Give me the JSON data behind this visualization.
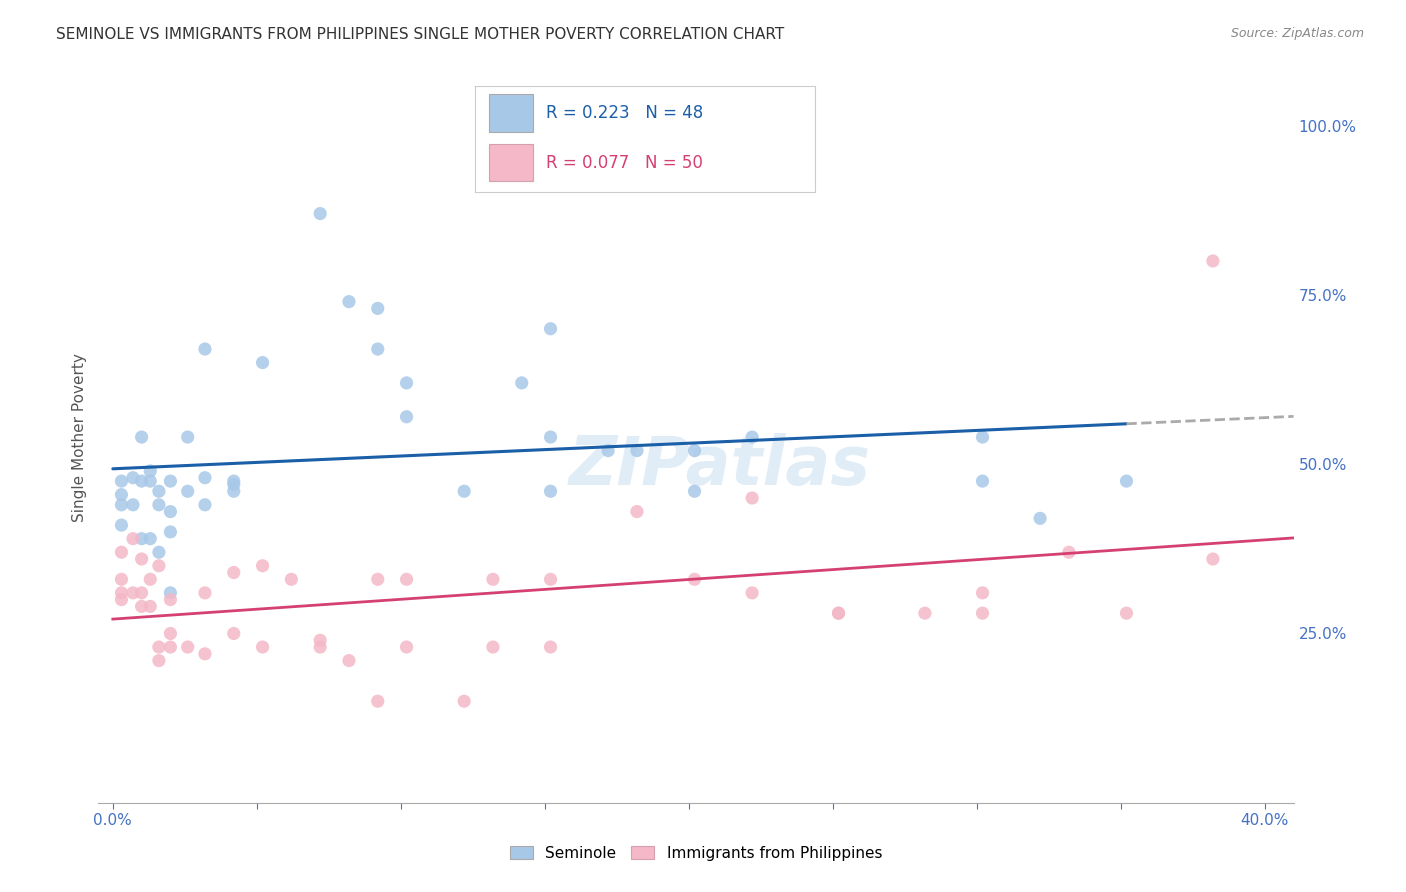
{
  "title": "SEMINOLE VS IMMIGRANTS FROM PHILIPPINES SINGLE MOTHER POVERTY CORRELATION CHART",
  "source": "Source: ZipAtlas.com",
  "ylabel": "Single Mother Poverty",
  "ylabel_right_ticks": [
    "100.0%",
    "75.0%",
    "50.0%",
    "25.0%"
  ],
  "ylabel_right_vals": [
    1.0,
    0.75,
    0.5,
    0.25
  ],
  "xlim": [
    -0.005,
    0.41
  ],
  "ylim": [
    0.0,
    1.08
  ],
  "blue_R": 0.223,
  "blue_N": 48,
  "pink_R": 0.077,
  "pink_N": 50,
  "legend_label_blue": "Seminole",
  "legend_label_pink": "Immigrants from Philippines",
  "blue_color": "#a8c8e8",
  "pink_color": "#f4b8c8",
  "blue_line_color": "#1a5fa8",
  "pink_line_color": "#d44070",
  "blue_scatter": [
    [
      0.003,
      0.455
    ],
    [
      0.003,
      0.475
    ],
    [
      0.003,
      0.41
    ],
    [
      0.003,
      0.44
    ],
    [
      0.007,
      0.48
    ],
    [
      0.007,
      0.44
    ],
    [
      0.01,
      0.39
    ],
    [
      0.01,
      0.475
    ],
    [
      0.01,
      0.54
    ],
    [
      0.013,
      0.475
    ],
    [
      0.013,
      0.49
    ],
    [
      0.013,
      0.39
    ],
    [
      0.016,
      0.46
    ],
    [
      0.016,
      0.37
    ],
    [
      0.016,
      0.44
    ],
    [
      0.02,
      0.475
    ],
    [
      0.02,
      0.4
    ],
    [
      0.02,
      0.31
    ],
    [
      0.02,
      0.43
    ],
    [
      0.026,
      0.46
    ],
    [
      0.026,
      0.54
    ],
    [
      0.032,
      0.67
    ],
    [
      0.032,
      0.48
    ],
    [
      0.032,
      0.44
    ],
    [
      0.042,
      0.46
    ],
    [
      0.042,
      0.475
    ],
    [
      0.042,
      0.47
    ],
    [
      0.052,
      0.65
    ],
    [
      0.072,
      0.87
    ],
    [
      0.082,
      0.74
    ],
    [
      0.092,
      0.73
    ],
    [
      0.092,
      0.67
    ],
    [
      0.102,
      0.62
    ],
    [
      0.102,
      0.57
    ],
    [
      0.122,
      0.46
    ],
    [
      0.142,
      0.62
    ],
    [
      0.152,
      0.7
    ],
    [
      0.152,
      0.46
    ],
    [
      0.152,
      0.54
    ],
    [
      0.172,
      0.52
    ],
    [
      0.182,
      0.52
    ],
    [
      0.202,
      0.52
    ],
    [
      0.202,
      0.46
    ],
    [
      0.222,
      0.54
    ],
    [
      0.302,
      0.54
    ],
    [
      0.302,
      0.475
    ],
    [
      0.322,
      0.42
    ],
    [
      0.352,
      0.475
    ]
  ],
  "pink_scatter": [
    [
      0.003,
      0.37
    ],
    [
      0.003,
      0.33
    ],
    [
      0.003,
      0.31
    ],
    [
      0.003,
      0.3
    ],
    [
      0.007,
      0.39
    ],
    [
      0.007,
      0.31
    ],
    [
      0.01,
      0.36
    ],
    [
      0.01,
      0.31
    ],
    [
      0.01,
      0.29
    ],
    [
      0.013,
      0.33
    ],
    [
      0.013,
      0.29
    ],
    [
      0.016,
      0.35
    ],
    [
      0.016,
      0.23
    ],
    [
      0.016,
      0.21
    ],
    [
      0.02,
      0.3
    ],
    [
      0.02,
      0.25
    ],
    [
      0.02,
      0.23
    ],
    [
      0.026,
      0.23
    ],
    [
      0.032,
      0.22
    ],
    [
      0.032,
      0.31
    ],
    [
      0.042,
      0.25
    ],
    [
      0.042,
      0.34
    ],
    [
      0.052,
      0.35
    ],
    [
      0.052,
      0.23
    ],
    [
      0.062,
      0.33
    ],
    [
      0.072,
      0.24
    ],
    [
      0.072,
      0.23
    ],
    [
      0.082,
      0.21
    ],
    [
      0.092,
      0.33
    ],
    [
      0.092,
      0.15
    ],
    [
      0.102,
      0.33
    ],
    [
      0.102,
      0.23
    ],
    [
      0.122,
      0.15
    ],
    [
      0.132,
      0.33
    ],
    [
      0.132,
      0.23
    ],
    [
      0.152,
      0.33
    ],
    [
      0.152,
      0.23
    ],
    [
      0.182,
      0.43
    ],
    [
      0.202,
      0.33
    ],
    [
      0.222,
      0.45
    ],
    [
      0.222,
      0.31
    ],
    [
      0.252,
      0.28
    ],
    [
      0.252,
      0.28
    ],
    [
      0.282,
      0.28
    ],
    [
      0.302,
      0.31
    ],
    [
      0.302,
      0.28
    ],
    [
      0.332,
      0.37
    ],
    [
      0.352,
      0.28
    ],
    [
      0.382,
      0.36
    ],
    [
      0.382,
      0.8
    ]
  ],
  "watermark": "ZIPatlas",
  "bg_color": "#ffffff",
  "grid_color": "#cccccc",
  "title_fontsize": 11,
  "axis_label_color": "#4472c4",
  "tick_color": "#4472c4",
  "x_tick_left_label": "0.0%",
  "x_tick_right_label": "40.0%",
  "x_tick_left_val": 0.0,
  "x_tick_right_val": 0.4
}
